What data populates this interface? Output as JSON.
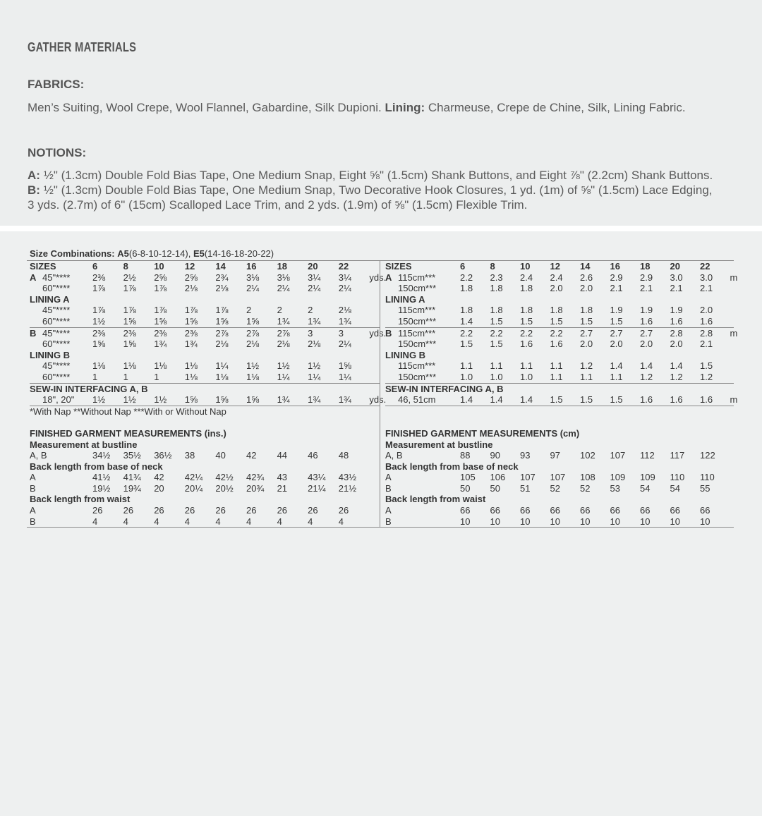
{
  "header": {
    "title": "GATHER MATERIALS"
  },
  "fabrics": {
    "heading": "FABRICS:",
    "text": "Men’s Suiting, Wool Crepe, Wool Flannel, Gabardine, Silk Dupioni.",
    "lining_label": "Lining:",
    "lining_text": "Charmeuse, Crepe de Chine, Silk, Lining Fabric."
  },
  "notions": {
    "heading": "NOTIONS:",
    "a_label": "A:",
    "a_text": "½\" (1.3cm) Double Fold Bias Tape, One Medium Snap, Eight ⅝\" (1.5cm) Shank Buttons, and Eight ⅞\" (2.2cm) Shank Buttons.",
    "b_label": "B:",
    "b_text": "½\" (1.3cm) Double Fold Bias Tape, One Medium Snap, Two Decorative Hook Closures, 1 yd. (1m) of ⅝\" (1.5cm) Lace Edging,",
    "b_text2": "3 yds. (2.7m) of 6\" (15cm) Scalloped Lace Trim, and 2 yds. (1.9m) of ⅝\" (1.5cm) Flexible Trim."
  },
  "combos": {
    "label": "Size Combinations:",
    "a5": "A5",
    "a5_sizes": "(6-8-10-12-14),",
    "e5": "E5",
    "e5_sizes": "(14-16-18-20-22)"
  },
  "footnote": "*With Nap **Without Nap ***With or Without Nap",
  "left": {
    "rows": [
      {
        "b": 1,
        "label": "SIZES",
        "v": [
          "6",
          "8",
          "10",
          "12",
          "14",
          "16",
          "18",
          "20",
          "22"
        ]
      },
      {
        "p": "A",
        "label": "45\"****",
        "v": [
          "2⅜",
          "2½",
          "2⅝",
          "2⅝",
          "2¾",
          "3⅛",
          "3⅛",
          "3¼",
          "3¼"
        ],
        "u": "yds."
      },
      {
        "s": 1,
        "label": "60\"****",
        "v": [
          "1⅞",
          "1⅞",
          "1⅞",
          "2⅛",
          "2⅛",
          "2¼",
          "2¼",
          "2¼",
          "2¼"
        ]
      },
      {
        "b": 1,
        "label": "LINING A"
      },
      {
        "s": 1,
        "label": "45\"****",
        "v": [
          "1⅞",
          "1⅞",
          "1⅞",
          "1⅞",
          "1⅞",
          "2",
          "2",
          "2",
          "2⅛"
        ]
      },
      {
        "s": 1,
        "label": "60\"****",
        "v": [
          "1½",
          "1⅝",
          "1⅝",
          "1⅝",
          "1⅝",
          "1⅝",
          "1¾",
          "1¾",
          "1¾"
        ]
      },
      {
        "line": 1,
        "p": "B",
        "label": "45\"****",
        "v": [
          "2⅜",
          "2⅜",
          "2⅜",
          "2⅜",
          "2⅞",
          "2⅞",
          "2⅞",
          "3",
          "3"
        ],
        "u": "yds."
      },
      {
        "s": 1,
        "label": "60\"****",
        "v": [
          "1⅝",
          "1⅝",
          "1¾",
          "1¾",
          "2⅛",
          "2⅛",
          "2⅛",
          "2⅛",
          "2¼"
        ]
      },
      {
        "b": 1,
        "label": "LINING B"
      },
      {
        "s": 1,
        "label": "45\"****",
        "v": [
          "1⅛",
          "1⅛",
          "1⅛",
          "1⅛",
          "1¼",
          "1½",
          "1½",
          "1½",
          "1⅝"
        ]
      },
      {
        "s": 1,
        "label": "60\"****",
        "v": [
          "1",
          "1",
          "1",
          "1⅛",
          "1⅛",
          "1⅛",
          "1¼",
          "1¼",
          "1¼"
        ]
      },
      {
        "line": 1,
        "b": 1,
        "label": "SEW-IN INTERFACING A, B"
      },
      {
        "s": 1,
        "lineb": 1,
        "label": "18\", 20\"",
        "v": [
          "1½",
          "1½",
          "1½",
          "1⅝",
          "1⅝",
          "1⅝",
          "1¾",
          "1¾",
          "1¾"
        ],
        "u": "yds."
      },
      {
        "label": "*With Nap **Without Nap ***With or Without Nap"
      },
      {
        "label": ""
      },
      {
        "b": 1,
        "label": "FINISHED GARMENT MEASUREMENTS (ins.)"
      },
      {
        "b": 1,
        "label": "Measurement at bustline"
      },
      {
        "label": "A, B",
        "v": [
          "34½",
          "35½",
          "36½",
          "38",
          "40",
          "42",
          "44",
          "46",
          "48"
        ]
      },
      {
        "b": 1,
        "label": "Back length from base of neck"
      },
      {
        "label": "A",
        "v": [
          "41½",
          "41¾",
          "42",
          "42¼",
          "42½",
          "42¾",
          "43",
          "43¼",
          "43½"
        ]
      },
      {
        "label": "B",
        "v": [
          "19½",
          "19¾",
          "20",
          "20¼",
          "20½",
          "20¾",
          "21",
          "21¼",
          "21½"
        ]
      },
      {
        "b": 1,
        "label": "Back length from waist"
      },
      {
        "label": "A",
        "v": [
          "26",
          "26",
          "26",
          "26",
          "26",
          "26",
          "26",
          "26",
          "26"
        ]
      },
      {
        "label": "B",
        "v": [
          "4",
          "4",
          "4",
          "4",
          "4",
          "4",
          "4",
          "4",
          "4"
        ]
      }
    ]
  },
  "right": {
    "rows": [
      {
        "b": 1,
        "label": "SIZES",
        "v": [
          "6",
          "8",
          "10",
          "12",
          "14",
          "16",
          "18",
          "20",
          "22"
        ]
      },
      {
        "p": "A",
        "label": "115cm***",
        "v": [
          "2.2",
          "2.3",
          "2.4",
          "2.4",
          "2.6",
          "2.9",
          "2.9",
          "3.0",
          "3.0"
        ],
        "u": "m"
      },
      {
        "s": 1,
        "label": "150cm***",
        "v": [
          "1.8",
          "1.8",
          "1.8",
          "2.0",
          "2.0",
          "2.1",
          "2.1",
          "2.1",
          "2.1"
        ]
      },
      {
        "b": 1,
        "label": "LINING A"
      },
      {
        "s": 1,
        "label": "115cm***",
        "v": [
          "1.8",
          "1.8",
          "1.8",
          "1.8",
          "1.8",
          "1.9",
          "1.9",
          "1.9",
          "2.0"
        ]
      },
      {
        "s": 1,
        "label": "150cm***",
        "v": [
          "1.4",
          "1.5",
          "1.5",
          "1.5",
          "1.5",
          "1.5",
          "1.6",
          "1.6",
          "1.6"
        ]
      },
      {
        "line": 1,
        "p": "B",
        "label": "115cm***",
        "v": [
          "2.2",
          "2.2",
          "2.2",
          "2.2",
          "2.7",
          "2.7",
          "2.7",
          "2.8",
          "2.8"
        ],
        "u": "m"
      },
      {
        "s": 1,
        "label": "150cm***",
        "v": [
          "1.5",
          "1.5",
          "1.6",
          "1.6",
          "2.0",
          "2.0",
          "2.0",
          "2.0",
          "2.1"
        ]
      },
      {
        "b": 1,
        "label": "LINING B"
      },
      {
        "s": 1,
        "label": "115cm***",
        "v": [
          "1.1",
          "1.1",
          "1.1",
          "1.1",
          "1.2",
          "1.4",
          "1.4",
          "1.4",
          "1.5"
        ]
      },
      {
        "s": 1,
        "label": "150cm***",
        "v": [
          "1.0",
          "1.0",
          "1.0",
          "1.1",
          "1.1",
          "1.1",
          "1.2",
          "1.2",
          "1.2"
        ]
      },
      {
        "line": 1,
        "b": 1,
        "label": "SEW-IN INTERFACING A, B"
      },
      {
        "s": 1,
        "lineb": 1,
        "label": "46, 51cm",
        "v": [
          "1.4",
          "1.4",
          "1.4",
          "1.5",
          "1.5",
          "1.5",
          "1.6",
          "1.6",
          "1.6"
        ],
        "u": "m"
      },
      {
        "label": ""
      },
      {
        "label": ""
      },
      {
        "b": 1,
        "label": "FINISHED GARMENT MEASUREMENTS (cm)"
      },
      {
        "b": 1,
        "label": "Measurement at bustline"
      },
      {
        "label": "A, B",
        "v": [
          "88",
          "90",
          "93",
          "97",
          "102",
          "107",
          "112",
          "117",
          "122"
        ]
      },
      {
        "b": 1,
        "label": "Back length from base of neck"
      },
      {
        "label": "A",
        "v": [
          "105",
          "106",
          "107",
          "107",
          "108",
          "109",
          "109",
          "110",
          "110"
        ]
      },
      {
        "label": "B",
        "v": [
          "50",
          "50",
          "51",
          "52",
          "52",
          "53",
          "54",
          "54",
          "55"
        ]
      },
      {
        "b": 1,
        "label": "Back length from waist"
      },
      {
        "label": "A",
        "v": [
          "66",
          "66",
          "66",
          "66",
          "66",
          "66",
          "66",
          "66",
          "66"
        ]
      },
      {
        "label": "B",
        "v": [
          "10",
          "10",
          "10",
          "10",
          "10",
          "10",
          "10",
          "10",
          "10"
        ]
      }
    ]
  }
}
